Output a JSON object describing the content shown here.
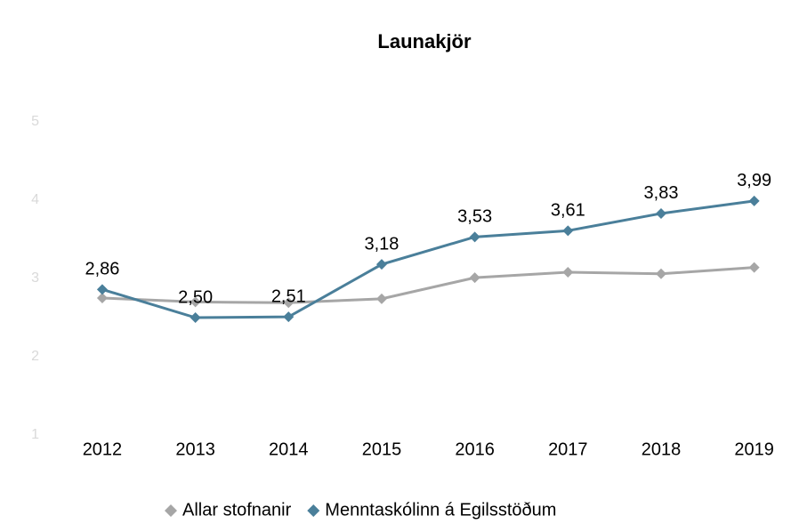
{
  "chart_data": {
    "type": "line",
    "title": "Launakjör",
    "categories": [
      "2012",
      "2013",
      "2014",
      "2015",
      "2016",
      "2017",
      "2018",
      "2019"
    ],
    "series": [
      {
        "name": "Allar stofnanir",
        "color": "#a6a6a6",
        "values": [
          2.75,
          2.7,
          2.69,
          2.74,
          3.01,
          3.08,
          3.06,
          3.14
        ]
      },
      {
        "name": "Menntaskólinn á Egilsstöðum",
        "color": "#4a7f9a",
        "values": [
          2.86,
          2.5,
          2.51,
          3.18,
          3.53,
          3.61,
          3.83,
          3.99
        ],
        "value_labels": [
          "2,86",
          "2,50",
          "2,51",
          "3,18",
          "3,53",
          "3,61",
          "3,83",
          "3,99"
        ]
      }
    ],
    "ylim": [
      1,
      5
    ],
    "yticks": [
      1,
      2,
      3,
      4,
      5
    ],
    "grid": false,
    "legend": "bottom"
  }
}
